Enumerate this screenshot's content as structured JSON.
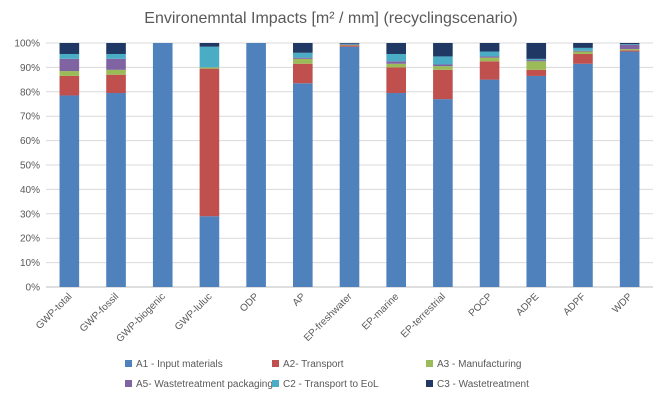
{
  "chart_data": {
    "type": "bar",
    "stacked": true,
    "title": "Environemntal Impacts [m² / mm] (recyclingscenario)",
    "xlabel": "",
    "ylabel": "",
    "ylim": [
      0,
      100
    ],
    "y_ticks": [
      "0%",
      "10%",
      "20%",
      "30%",
      "40%",
      "50%",
      "60%",
      "70%",
      "80%",
      "90%",
      "100%"
    ],
    "grid": true,
    "legend_position": "bottom",
    "categories": [
      "GWP-total",
      "GWP-fossil",
      "GWP-biogenic",
      "GWP-luluc",
      "ODP",
      "AP",
      "EP-freshwater",
      "EP-marine",
      "EP-terrestrial",
      "POCP",
      "ADPE",
      "ADPF",
      "WDP"
    ],
    "series": [
      {
        "name": "A1 - Input materials",
        "color": "#4f81bd",
        "values": [
          78.5,
          79.5,
          100,
          29,
          100,
          83.5,
          98.5,
          79.5,
          77,
          85,
          86.5,
          91.5,
          96.5
        ]
      },
      {
        "name": "A2- Transport",
        "color": "#c0504d",
        "values": [
          8,
          7.5,
          0,
          60.5,
          0,
          8,
          0.5,
          10.5,
          12,
          7.5,
          2.5,
          4,
          0.5
        ]
      },
      {
        "name": "A3 - Manufacturing",
        "color": "#9bbb59",
        "values": [
          2,
          2,
          0,
          0.5,
          0,
          2,
          0.2,
          1.5,
          1.5,
          1.5,
          3.5,
          1,
          0.5
        ]
      },
      {
        "name": "A5- Wastetreatment packaging",
        "color": "#8064a2",
        "values": [
          5,
          4.5,
          0,
          0,
          0,
          0.5,
          0.2,
          1,
          0.7,
          0.5,
          0.5,
          0.3,
          1.7
        ]
      },
      {
        "name": "C2 - Transport to EoL",
        "color": "#4bacc6",
        "values": [
          2,
          2,
          0,
          8.5,
          0,
          2,
          0.3,
          3,
          3.3,
          2,
          0.5,
          1.2,
          0.3
        ]
      },
      {
        "name": "C3 - Wastetreatment",
        "color": "#1f3864",
        "values": [
          4.5,
          4.5,
          0,
          1.5,
          0,
          4,
          0.3,
          4.5,
          5.5,
          3.5,
          6.5,
          2,
          0.5
        ]
      }
    ]
  }
}
